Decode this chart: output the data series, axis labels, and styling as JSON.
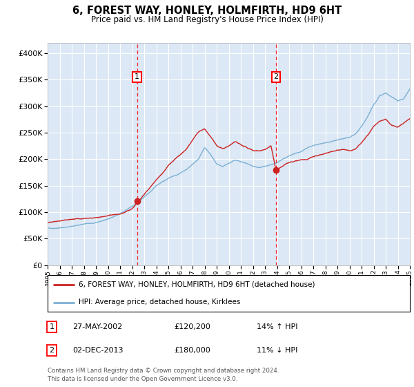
{
  "title": "6, FOREST WAY, HONLEY, HOLMFIRTH, HD9 6HT",
  "subtitle": "Price paid vs. HM Land Registry's House Price Index (HPI)",
  "plot_bg_color": "#dce8f5",
  "ylim": [
    0,
    420000
  ],
  "yticks": [
    0,
    50000,
    100000,
    150000,
    200000,
    250000,
    300000,
    350000,
    400000
  ],
  "x_start_year": 1995,
  "x_end_year": 2025,
  "transaction1": {
    "date_num": 2002.41,
    "price": 120200,
    "label": "1",
    "date_str": "27-MAY-2002"
  },
  "transaction2": {
    "date_num": 2013.92,
    "price": 180000,
    "label": "2",
    "date_str": "02-DEC-2013"
  },
  "legend_entry1": "6, FOREST WAY, HONLEY, HOLMFIRTH, HD9 6HT (detached house)",
  "legend_entry2": "HPI: Average price, detached house, Kirklees",
  "footnote1": "Contains HM Land Registry data © Crown copyright and database right 2024.",
  "footnote2": "This data is licensed under the Open Government Licence v3.0.",
  "table_rows": [
    {
      "num": "1",
      "date": "27-MAY-2002",
      "price": "£120,200",
      "hpi": "14% ↑ HPI"
    },
    {
      "num": "2",
      "date": "02-DEC-2013",
      "price": "£180,000",
      "hpi": "11% ↓ HPI"
    }
  ],
  "red_line_color": "#cc2222",
  "blue_line_color": "#7ab0d4",
  "grid_color": "#ffffff",
  "hpi_keypoints": [
    [
      1995.0,
      70000
    ],
    [
      1995.5,
      69000
    ],
    [
      1996.0,
      71000
    ],
    [
      1996.5,
      72000
    ],
    [
      1997.0,
      74000
    ],
    [
      1997.5,
      75000
    ],
    [
      1998.0,
      77000
    ],
    [
      1998.5,
      79000
    ],
    [
      1999.0,
      81000
    ],
    [
      1999.5,
      84000
    ],
    [
      2000.0,
      88000
    ],
    [
      2000.5,
      93000
    ],
    [
      2001.0,
      98000
    ],
    [
      2001.5,
      105000
    ],
    [
      2002.0,
      112000
    ],
    [
      2002.5,
      120000
    ],
    [
      2003.0,
      130000
    ],
    [
      2003.5,
      140000
    ],
    [
      2004.0,
      152000
    ],
    [
      2004.5,
      160000
    ],
    [
      2005.0,
      167000
    ],
    [
      2005.5,
      172000
    ],
    [
      2006.0,
      178000
    ],
    [
      2006.5,
      185000
    ],
    [
      2007.0,
      195000
    ],
    [
      2007.5,
      205000
    ],
    [
      2008.0,
      228000
    ],
    [
      2008.5,
      215000
    ],
    [
      2009.0,
      198000
    ],
    [
      2009.5,
      192000
    ],
    [
      2010.0,
      197000
    ],
    [
      2010.5,
      203000
    ],
    [
      2011.0,
      200000
    ],
    [
      2011.5,
      196000
    ],
    [
      2012.0,
      192000
    ],
    [
      2012.5,
      190000
    ],
    [
      2013.0,
      192000
    ],
    [
      2013.5,
      196000
    ],
    [
      2014.0,
      200000
    ],
    [
      2014.5,
      207000
    ],
    [
      2015.0,
      213000
    ],
    [
      2015.5,
      218000
    ],
    [
      2016.0,
      222000
    ],
    [
      2016.5,
      228000
    ],
    [
      2017.0,
      233000
    ],
    [
      2017.5,
      236000
    ],
    [
      2018.0,
      238000
    ],
    [
      2018.5,
      240000
    ],
    [
      2019.0,
      242000
    ],
    [
      2019.5,
      244000
    ],
    [
      2020.0,
      245000
    ],
    [
      2020.5,
      252000
    ],
    [
      2021.0,
      265000
    ],
    [
      2021.5,
      285000
    ],
    [
      2022.0,
      308000
    ],
    [
      2022.5,
      325000
    ],
    [
      2023.0,
      330000
    ],
    [
      2023.5,
      322000
    ],
    [
      2024.0,
      315000
    ],
    [
      2024.5,
      320000
    ],
    [
      2025.0,
      338000
    ]
  ],
  "red_keypoints": [
    [
      1995.0,
      80000
    ],
    [
      1995.5,
      80500
    ],
    [
      1996.0,
      82000
    ],
    [
      1996.5,
      83500
    ],
    [
      1997.0,
      85000
    ],
    [
      1997.5,
      86500
    ],
    [
      1998.0,
      88000
    ],
    [
      1998.5,
      90000
    ],
    [
      1999.0,
      91000
    ],
    [
      1999.5,
      93000
    ],
    [
      2000.0,
      95000
    ],
    [
      2000.5,
      98000
    ],
    [
      2001.0,
      100000
    ],
    [
      2001.5,
      105000
    ],
    [
      2002.0,
      110000
    ],
    [
      2002.41,
      120200
    ],
    [
      2002.5,
      122000
    ],
    [
      2003.0,
      135000
    ],
    [
      2003.5,
      148000
    ],
    [
      2004.0,
      162000
    ],
    [
      2004.5,
      175000
    ],
    [
      2005.0,
      190000
    ],
    [
      2005.5,
      200000
    ],
    [
      2006.0,
      210000
    ],
    [
      2006.5,
      222000
    ],
    [
      2007.0,
      238000
    ],
    [
      2007.5,
      255000
    ],
    [
      2008.0,
      262000
    ],
    [
      2008.5,
      248000
    ],
    [
      2009.0,
      232000
    ],
    [
      2009.5,
      225000
    ],
    [
      2010.0,
      230000
    ],
    [
      2010.5,
      238000
    ],
    [
      2011.0,
      232000
    ],
    [
      2011.5,
      225000
    ],
    [
      2012.0,
      220000
    ],
    [
      2012.5,
      218000
    ],
    [
      2013.0,
      222000
    ],
    [
      2013.5,
      228000
    ],
    [
      2013.92,
      180000
    ],
    [
      2014.0,
      182000
    ],
    [
      2014.5,
      188000
    ],
    [
      2015.0,
      194000
    ],
    [
      2015.5,
      198000
    ],
    [
      2016.0,
      200000
    ],
    [
      2016.5,
      202000
    ],
    [
      2017.0,
      208000
    ],
    [
      2017.5,
      212000
    ],
    [
      2018.0,
      215000
    ],
    [
      2018.5,
      218000
    ],
    [
      2019.0,
      220000
    ],
    [
      2019.5,
      222000
    ],
    [
      2020.0,
      220000
    ],
    [
      2020.5,
      225000
    ],
    [
      2021.0,
      238000
    ],
    [
      2021.5,
      252000
    ],
    [
      2022.0,
      268000
    ],
    [
      2022.5,
      278000
    ],
    [
      2023.0,
      282000
    ],
    [
      2023.5,
      270000
    ],
    [
      2024.0,
      265000
    ],
    [
      2024.5,
      272000
    ],
    [
      2025.0,
      280000
    ]
  ]
}
